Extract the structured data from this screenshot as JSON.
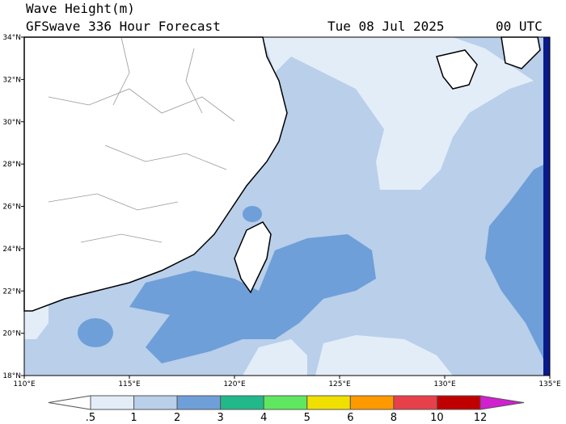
{
  "header": {
    "title": "Wave Height(m)",
    "subtitle": "GFSwave 336 Hour Forecast",
    "date": "Tue 08 Jul 2025",
    "time": "00 UTC"
  },
  "map": {
    "lat_labels": [
      "34°N",
      "32°N",
      "30°N",
      "28°N",
      "26°N",
      "24°N",
      "22°N",
      "20°N",
      "18°N"
    ],
    "lon_labels": [
      "110°E",
      "115°E",
      "120°E",
      "125°E",
      "130°E",
      "135°E"
    ]
  },
  "colorbar": {
    "labels": [
      ".5",
      "1",
      "2",
      "3",
      "4",
      "5",
      "6",
      "8",
      "10",
      "12"
    ],
    "colors": [
      "#ffffff",
      "#e3edf8",
      "#b9cfea",
      "#6f9fd8",
      "#22b98a",
      "#5fe85f",
      "#f0e000",
      "#ff9900",
      "#e8404a",
      "#c00000",
      "#d020d0"
    ]
  }
}
